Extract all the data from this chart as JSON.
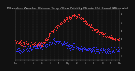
{
  "title": "Milwaukee Weather Outdoor Temp / Dew Point by Minute (24 Hours) (Alternate)",
  "title_fontsize": 3.2,
  "background_color": "#111111",
  "plot_bg_color": "#111111",
  "temp_color": "#ff3333",
  "dew_color": "#3333ff",
  "grid_color": "#555555",
  "ylim": [
    25,
    85
  ],
  "xlim": [
    0,
    1440
  ],
  "x_ticks": [
    0,
    60,
    120,
    180,
    240,
    300,
    360,
    420,
    480,
    540,
    600,
    660,
    720,
    780,
    840,
    900,
    960,
    1020,
    1080,
    1140,
    1200,
    1260,
    1320,
    1380,
    1440
  ],
  "x_tick_labels": [
    "12a",
    "1",
    "2",
    "3",
    "4",
    "5",
    "6",
    "7",
    "8",
    "9",
    "10",
    "11",
    "12p",
    "1",
    "2",
    "3",
    "4",
    "5",
    "6",
    "7",
    "8",
    "9",
    "10",
    "11",
    "12a"
  ],
  "yticks_right": [
    30,
    40,
    50,
    60,
    70,
    80
  ],
  "tick_label_color": "#cccccc",
  "marker_size": 0.5
}
